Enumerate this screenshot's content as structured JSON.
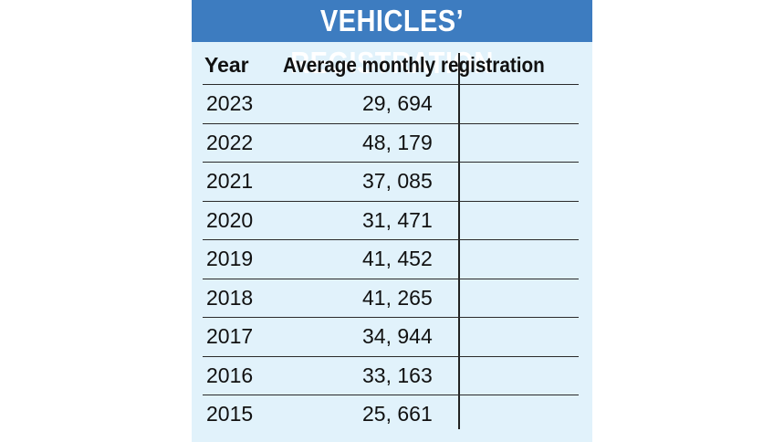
{
  "chart_data": {
    "type": "table",
    "title": "VEHICLES’ REGISTRATION",
    "columns": [
      "Year",
      "Average monthly registration"
    ],
    "rows": [
      {
        "year": "2023",
        "value": "29, 694"
      },
      {
        "year": "2022",
        "value": "48, 179"
      },
      {
        "year": "2021",
        "value": "37, 085"
      },
      {
        "year": "2020",
        "value": "31, 471"
      },
      {
        "year": "2019",
        "value": "41, 452"
      },
      {
        "year": "2018",
        "value": "41, 265"
      },
      {
        "year": "2017",
        "value": "34, 944"
      },
      {
        "year": "2016",
        "value": "33, 163"
      },
      {
        "year": "2015",
        "value": "25, 661"
      }
    ]
  },
  "colors": {
    "banner": "#3d7cc0",
    "panel": "#e1f2fb",
    "text": "#111111"
  }
}
